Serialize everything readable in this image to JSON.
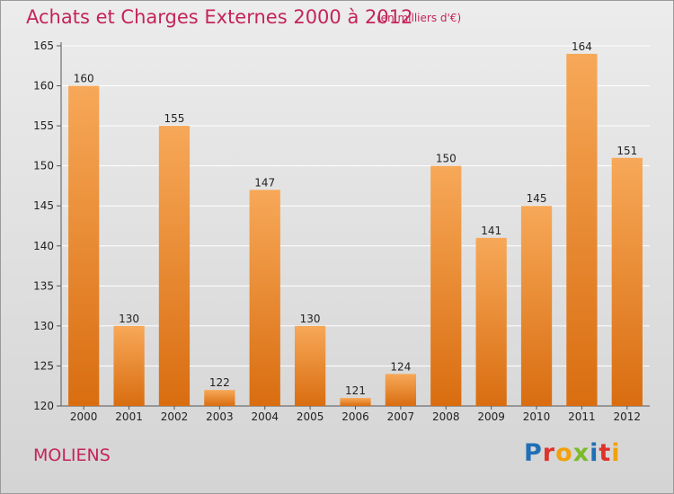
{
  "header": {
    "title": "Achats et Charges Externes 2000 à 2012",
    "subtitle": "(en milliers d'€)"
  },
  "footer": {
    "town": "MOLIENS",
    "logo_text": "Proxiti",
    "logo_letters": [
      {
        "ch": "P",
        "color": "#1f6fb5"
      },
      {
        "ch": "r",
        "color": "#e0322b"
      },
      {
        "ch": "o",
        "color": "#f2a10b"
      },
      {
        "ch": "x",
        "color": "#7bbb2a"
      },
      {
        "ch": "i",
        "color": "#1f6fb5"
      },
      {
        "ch": "t",
        "color": "#e0322b"
      },
      {
        "ch": "i",
        "color": "#f2a10b"
      }
    ]
  },
  "colors": {
    "title": "#c4245a",
    "bar_top": "#f7a858",
    "bar_bottom": "#d96d10"
  },
  "chart_data": {
    "type": "bar",
    "title": "Achats et Charges Externes 2000 à 2012",
    "subtitle": "(en milliers d'€)",
    "xlabel": "",
    "ylabel": "",
    "categories": [
      "2000",
      "2001",
      "2002",
      "2003",
      "2004",
      "2005",
      "2006",
      "2007",
      "2008",
      "2009",
      "2010",
      "2011",
      "2012"
    ],
    "values": [
      160,
      130,
      155,
      122,
      147,
      130,
      121,
      124,
      150,
      141,
      145,
      164,
      151
    ],
    "ylim": [
      120,
      165
    ],
    "yticks": [
      120,
      125,
      130,
      135,
      140,
      145,
      150,
      155,
      160,
      165
    ],
    "grid": true,
    "data_labels": true
  }
}
